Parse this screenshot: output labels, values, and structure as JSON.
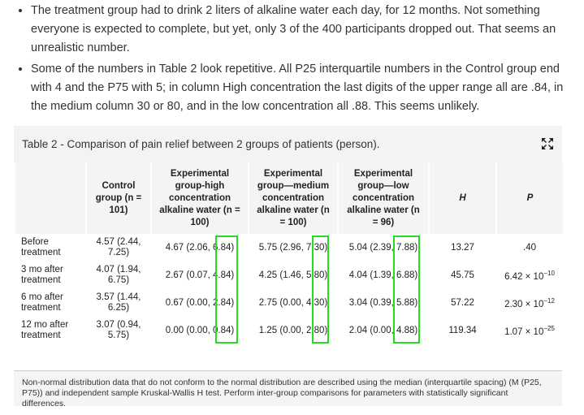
{
  "bullets": [
    "The treatment group had to drink 2 liters of alkaline water each day, for 12 months. Not something everyone is expected to complete, but yet, only 3 of the 400 participants dropped out. That seems an unrealistic number.",
    "Some of the numbers in Table 2 look repetitive. All P25 interquartile numbers in the Control group end with 4 and the P75 with 5; in column High concentration the last digits of the upper range all are .84, in the medium column 30 or 80, and in the low concentration all .88. This seems unlikely."
  ],
  "table": {
    "title": "Table 2 - Comparison of pain relief between 2 groups of patients (person).",
    "headers": [
      "",
      "Control group (n = 101)",
      "Experimental group-high concentration alkaline water (n = 100)",
      "Experimental group—medium concentration alkaline water (n = 100)",
      "Experimental group—low concentration alkaline water (n = 96)",
      "H",
      "P"
    ],
    "rows": [
      [
        "Before treatment",
        "4.57 (2.44, 7.25)",
        "4.67 (2.06, 6.84)",
        "5.75 (2.96, 7.30)",
        "5.04 (2.39, 7.88)",
        "13.27",
        ".40"
      ],
      [
        "3 mo after treatment",
        "4.07 (1.94, 6.75)",
        "2.67 (0.07, 4.84)",
        "4.25 (1.46, 5.80)",
        "4.04 (1.39, 6.88)",
        "45.75",
        {
          "base": "6.42 × 10",
          "exp": "−10"
        }
      ],
      [
        "6 mo after treatment",
        "3.57 (1.44, 6.25)",
        "0.67 (0.00, 2.84)",
        "2.75 (0.00, 4.30)",
        "3.04 (0.39, 5.88)",
        "57.22",
        {
          "base": "2.30 × 10",
          "exp": "−12"
        }
      ],
      [
        "12 mo after treatment",
        "3.07 (0.94, 5.75)",
        "0.00 (0.00, 0.84)",
        "1.25 (0.00, 2.80)",
        "2.04 (0.00, 4.88)",
        "119.34",
        {
          "base": "1.07 × 10",
          "exp": "−25"
        }
      ]
    ],
    "footnote": "Non-normal distribution data that do not conform to the normal distribution are described using the median (interquartile spacing) (M (P25, P75)) and independent sample Kruskal-Wallis H test. Perform inter-group comparisons for parameters with statistically significant differences."
  }
}
